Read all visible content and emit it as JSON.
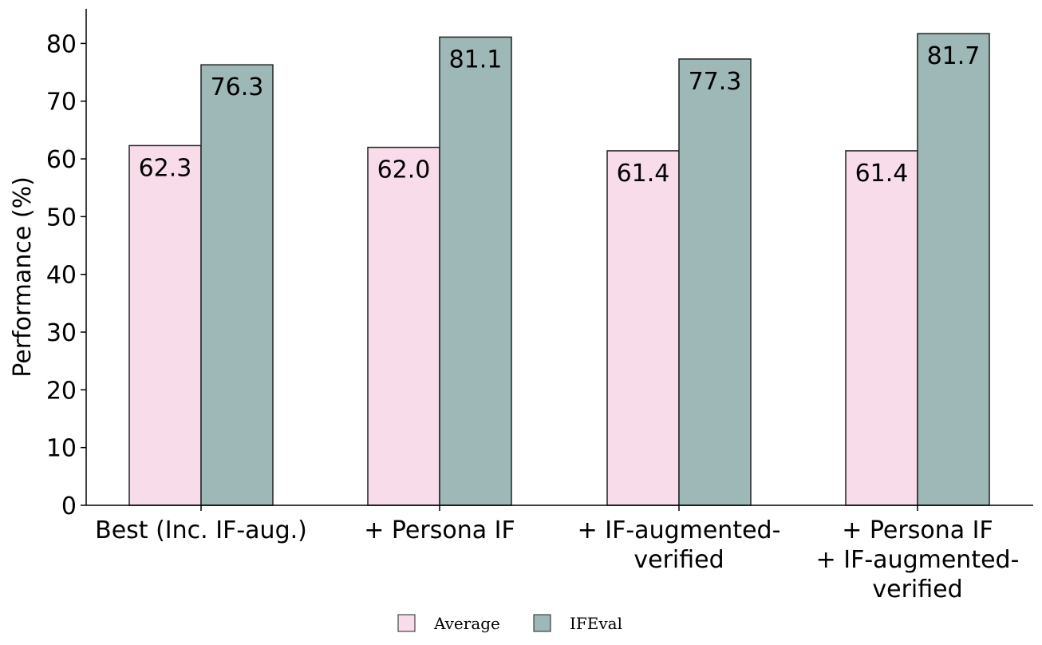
{
  "chart_data": {
    "type": "bar",
    "categories": [
      [
        "Best (Inc. IF-aug.)"
      ],
      [
        "+ Persona IF"
      ],
      [
        "+ IF-augmented-",
        "verified"
      ],
      [
        "+ Persona IF",
        "+ IF-augmented-",
        "verified"
      ]
    ],
    "series": [
      {
        "name": "Average",
        "values": [
          62.3,
          62.0,
          61.4,
          61.4
        ],
        "color": "#f8dcea"
      },
      {
        "name": "IFEval",
        "values": [
          76.3,
          81.1,
          77.3,
          81.7
        ],
        "color": "#9eb7b7"
      }
    ],
    "value_labels": [
      [
        "62.3",
        "62.0",
        "61.4",
        "61.4"
      ],
      [
        "76.3",
        "81.1",
        "77.3",
        "81.7"
      ]
    ],
    "ylabel": "Performance (%)",
    "xlabel": "",
    "title": "",
    "ylim": [
      0,
      86
    ],
    "yticks": [
      0,
      10,
      20,
      30,
      40,
      50,
      60,
      70,
      80
    ],
    "grid": false,
    "legend_position": "bottom-center",
    "edge_color": "#222222"
  }
}
